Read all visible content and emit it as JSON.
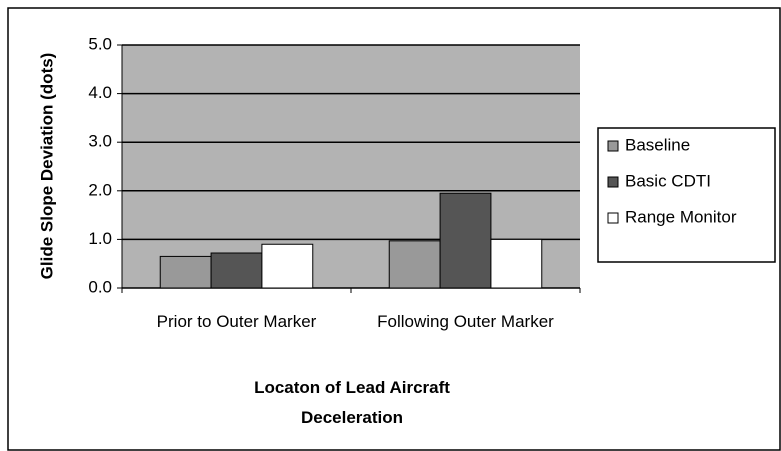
{
  "chart_data": {
    "type": "bar",
    "y_label": "Glide Slope Deviation (dots)",
    "x_label": "Locaton of Lead Aircraft Deceleration",
    "categories": [
      "Prior to Outer Marker",
      "Following Outer Marker"
    ],
    "series": [
      {
        "name": "Baseline",
        "color": "#999999",
        "values": [
          0.65,
          0.97
        ]
      },
      {
        "name": "Basic CDTI",
        "color": "#555555",
        "values": [
          0.72,
          1.95
        ]
      },
      {
        "name": "Range Monitor",
        "color": "#ffffff",
        "values": [
          0.9,
          1.0
        ]
      }
    ],
    "ylim": [
      0,
      5
    ],
    "yticks": [
      {
        "value": 0,
        "label": "0.0"
      },
      {
        "value": 1,
        "label": "1.0"
      },
      {
        "value": 2,
        "label": "2.0"
      },
      {
        "value": 3,
        "label": "3.0"
      },
      {
        "value": 4,
        "label": "4.0"
      },
      {
        "value": 5,
        "label": "5.0"
      }
    ],
    "grid": true,
    "legend": "right"
  }
}
